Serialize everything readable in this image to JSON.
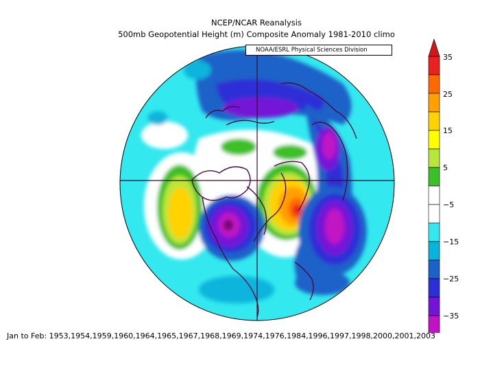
{
  "header": {
    "line1": "NCEP/NCAR Reanalysis",
    "line2": "500mb Geopotential Height (m) Composite Anomaly 1981-2010 climo"
  },
  "credit": "NOAA/ESRL Physical Sciences Division",
  "colorbar": {
    "labels": [
      "35",
      "25",
      "15",
      "5",
      "−5",
      "−15",
      "−25",
      "−35"
    ],
    "colors": [
      "#e8221e",
      "#ff6a00",
      "#ffa000",
      "#ffd200",
      "#ffff00",
      "#b8e63c",
      "#3cbf28",
      "#ffffff",
      "#ffffff",
      "#33e8ee",
      "#08b4dc",
      "#1a62c8",
      "#2d2ed6",
      "#7414d6",
      "#c013c4",
      "#6e0c6e"
    ]
  },
  "footer": "Jan to Feb: 1953,1954,1959,1960,1964,1965,1967,1968,1969,1974,1976,1984,1996,1997,1998,2000,2001,2003"
}
